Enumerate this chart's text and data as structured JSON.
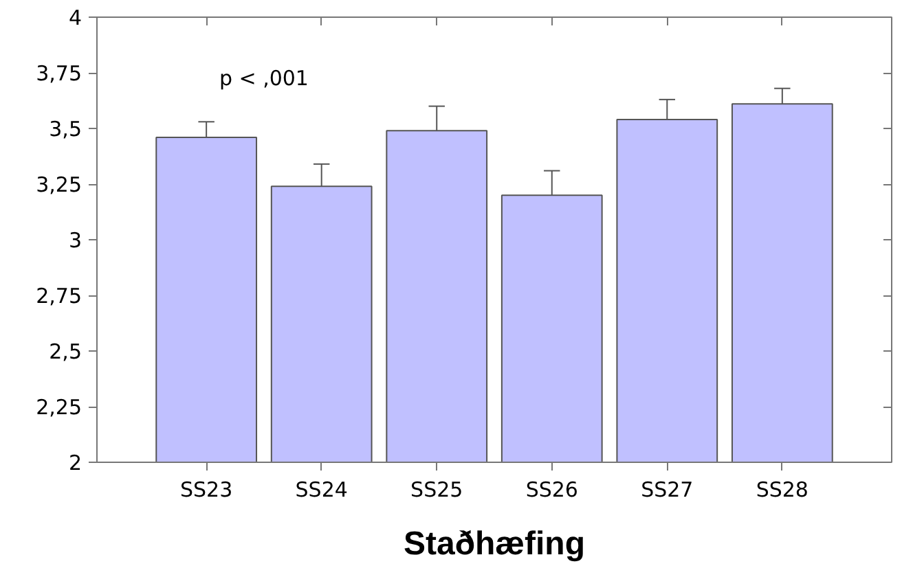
{
  "chart_data": {
    "type": "bar",
    "xlabel": "Staðhæfing",
    "categories": [
      "SS23",
      "SS24",
      "SS25",
      "SS26",
      "SS27",
      "SS28"
    ],
    "values": [
      3.46,
      3.24,
      3.49,
      3.2,
      3.54,
      3.61
    ],
    "errors": [
      [
        3.46,
        3.53
      ],
      [
        3.24,
        3.34
      ],
      [
        3.49,
        3.6
      ],
      [
        3.2,
        3.31
      ],
      [
        3.54,
        3.63
      ],
      [
        3.61,
        3.68
      ]
    ],
    "color": "#c0c0ff",
    "ylim": [
      2,
      4
    ],
    "yticks": [
      2,
      {
        "value": 2.25,
        "label": "2,25"
      },
      {
        "value": 2.5,
        "label": "2,5"
      },
      {
        "value": 2.75,
        "label": "2,75"
      },
      3,
      {
        "value": 3.25,
        "label": "3,25"
      },
      {
        "value": 3.5,
        "label": "3,5"
      },
      {
        "value": 3.75,
        "label": "3,75"
      },
      4
    ],
    "annotations": [
      "p < ,001"
    ],
    "grid": false
  }
}
